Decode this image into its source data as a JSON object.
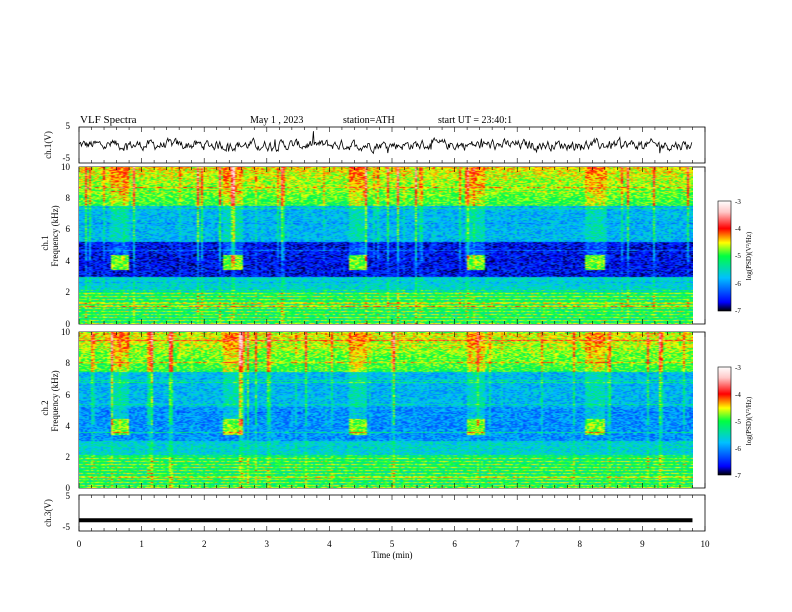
{
  "header": {
    "title": "VLF Spectra",
    "date": "May 1 , 2023",
    "station": "station=ATH",
    "start": "start UT = 23:40:1"
  },
  "colorscale": {
    "label": "log(PSD)(V²/Hz)",
    "min": -7,
    "max": -3,
    "ticks": [
      "-3",
      "-4",
      "-5",
      "-6",
      "-7"
    ],
    "colors": [
      "#000000",
      "#0000ff",
      "#00c0ff",
      "#00ff40",
      "#ffff00",
      "#ff0000",
      "#ffd0d0",
      "#ffffff"
    ]
  },
  "chart_data": [
    {
      "type": "line",
      "ylabel": "ch.1(V)",
      "ylim": [
        -5,
        5
      ],
      "yticks": [
        "5",
        "-5"
      ],
      "x_range_min": [
        0,
        9.8
      ],
      "description_level": 0
    },
    {
      "type": "heatmap",
      "ylabel_top": "ch.1",
      "ylabel": "Frequency (kHz)",
      "ylim": [
        0,
        10
      ],
      "yticks": [
        "10",
        "8",
        "6",
        "4",
        "2",
        "0"
      ],
      "x_range_min": [
        0,
        9.8
      ],
      "tx_bursts_min": [
        [
          0.5,
          0.8
        ],
        [
          2.3,
          2.6
        ],
        [
          4.3,
          4.6
        ],
        [
          6.2,
          6.5
        ],
        [
          8.1,
          8.4
        ]
      ],
      "tx_frequency_khz": 4.0
    },
    {
      "type": "heatmap",
      "ylabel_top": "ch.2",
      "ylabel": "Frequency (kHz)",
      "ylim": [
        0,
        10
      ],
      "yticks": [
        "10",
        "8",
        "6",
        "4",
        "2",
        "0"
      ],
      "x_range_min": [
        0,
        9.8
      ],
      "tx_bursts_min": [
        [
          0.5,
          0.8
        ],
        [
          2.3,
          2.6
        ],
        [
          4.3,
          4.6
        ],
        [
          6.2,
          6.5
        ],
        [
          8.1,
          8.4
        ]
      ],
      "tx_frequency_khz": 4.0
    },
    {
      "type": "line",
      "ylabel": "ch.3(V)",
      "ylim": [
        -5,
        5
      ],
      "yticks": [
        "5",
        "-5"
      ],
      "x_range_min": [
        0,
        9.8
      ],
      "description_level": -2
    }
  ],
  "xaxis": {
    "label": "Time (min)",
    "min": 0,
    "max": 10,
    "ticks": [
      "0",
      "1",
      "2",
      "3",
      "4",
      "5",
      "6",
      "7",
      "8",
      "9",
      "10"
    ]
  }
}
